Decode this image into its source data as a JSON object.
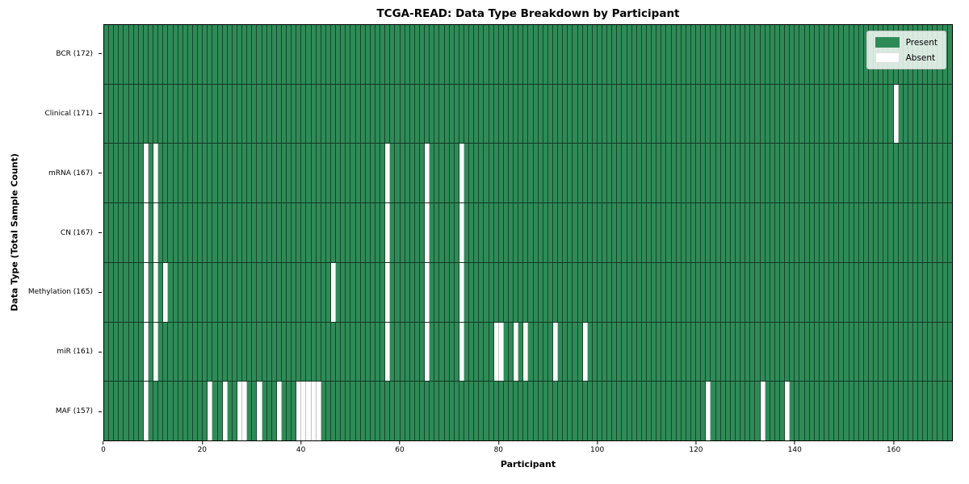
{
  "title": "TCGA-READ: Data Type Breakdown by Participant",
  "xlabel": "Participant",
  "ylabel": "Data Type (Total Sample Count)",
  "colors": {
    "present": "#2e8b57",
    "absent": "#ffffff",
    "grid_line": "rgba(0,0,0,0.5)"
  },
  "legend": {
    "position": "upper right",
    "entries": [
      {
        "label": "Present",
        "color": "#2e8b57"
      },
      {
        "label": "Absent",
        "color": "#ffffff"
      }
    ]
  },
  "chart_data": {
    "type": "heatmap",
    "x": "participant index (0-171)",
    "n_participants": 172,
    "x_ticks": [
      0,
      20,
      40,
      60,
      80,
      100,
      120,
      140,
      160
    ],
    "xlim": [
      0,
      172
    ],
    "grid": true,
    "rows": [
      {
        "label": "BCR (172)",
        "data_type": "BCR",
        "total": 172,
        "absent_participants": []
      },
      {
        "label": "Clinical (171)",
        "data_type": "Clinical",
        "total": 171,
        "absent_participants": [
          160
        ]
      },
      {
        "label": "mRNA (167)",
        "data_type": "mRNA",
        "total": 167,
        "absent_participants": [
          8,
          10,
          57,
          65,
          72
        ]
      },
      {
        "label": "CN (167)",
        "data_type": "CN",
        "total": 167,
        "absent_participants": [
          8,
          10,
          57,
          65,
          72
        ]
      },
      {
        "label": "Methylation (165)",
        "data_type": "Methylation",
        "total": 165,
        "absent_participants": [
          8,
          10,
          12,
          46,
          57,
          65,
          72
        ]
      },
      {
        "label": "miR (161)",
        "data_type": "miR",
        "total": 161,
        "absent_participants": [
          8,
          10,
          57,
          65,
          72,
          79,
          80,
          83,
          85,
          91,
          97
        ]
      },
      {
        "label": "MAF (157)",
        "data_type": "MAF",
        "total": 157,
        "absent_participants": [
          8,
          21,
          24,
          27,
          28,
          31,
          35,
          39,
          40,
          41,
          42,
          43,
          122,
          133,
          138
        ]
      }
    ]
  }
}
